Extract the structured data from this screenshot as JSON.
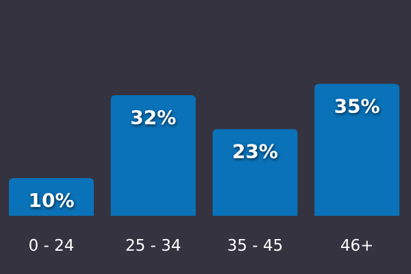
{
  "chart_data": {
    "type": "bar",
    "categories": [
      "0 - 24",
      "25 - 34",
      "35 - 45",
      "46+"
    ],
    "values": [
      10,
      32,
      23,
      35
    ],
    "value_labels": [
      "10%",
      "32%",
      "23%",
      "35%"
    ],
    "color": "#0a72b8"
  }
}
